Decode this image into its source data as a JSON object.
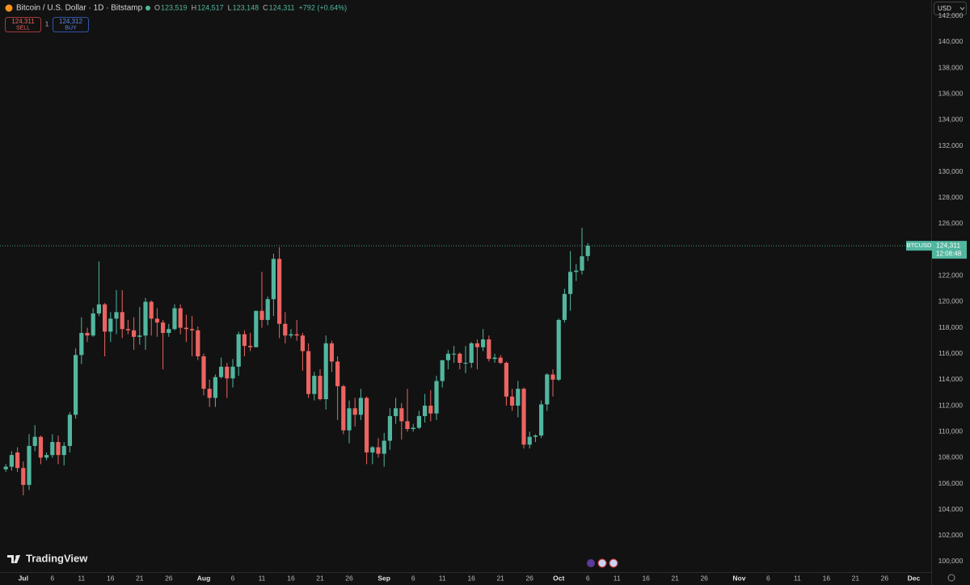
{
  "header": {
    "symbol": "Bitcoin / U.S. Dollar · 1D · Bitstamp",
    "ohlc": [
      {
        "key": "O",
        "value": "123,519"
      },
      {
        "key": "H",
        "value": "124,517"
      },
      {
        "key": "L",
        "value": "123,148"
      },
      {
        "key": "C",
        "value": "124,311"
      }
    ],
    "change": "+792 (+0.64%)",
    "sell_price": "124,311",
    "sell_label": "SELL",
    "quantity": "1",
    "buy_price": "124,312",
    "buy_label": "BUY",
    "currency": "USD"
  },
  "price_tag": {
    "symbol": "BTCUSD",
    "price": "124,311",
    "countdown": "12:08:48"
  },
  "logo": "TradingView",
  "chart_data": {
    "type": "candlestick",
    "up_color": "#52b69f",
    "down_color": "#eb6461",
    "grid": false,
    "x": [
      "Jun 28",
      "Jun 29",
      "Jun 30",
      "Jul 1",
      "Jul 2",
      "Jul 3",
      "Jul 4",
      "Jul 5",
      "Jul 6",
      "Jul 7",
      "Jul 8",
      "Jul 9",
      "Jul 10",
      "Jul 11",
      "Jul 12",
      "Jul 13",
      "Jul 14",
      "Jul 15",
      "Jul 16",
      "Jul 17",
      "Jul 18",
      "Jul 19",
      "Jul 20",
      "Jul 21",
      "Jul 22",
      "Jul 23",
      "Jul 24",
      "Jul 25",
      "Jul 26",
      "Jul 27",
      "Jul 28",
      "Jul 29",
      "Jul 30",
      "Jul 31",
      "Aug 1",
      "Aug 2",
      "Aug 3",
      "Aug 4",
      "Aug 5",
      "Aug 6",
      "Aug 7",
      "Aug 8",
      "Aug 9",
      "Aug 10",
      "Aug 11",
      "Aug 12",
      "Aug 13",
      "Aug 14",
      "Aug 15",
      "Aug 16",
      "Aug 17",
      "Aug 18",
      "Aug 19",
      "Aug 20",
      "Aug 21",
      "Aug 22",
      "Aug 23",
      "Aug 24",
      "Aug 25",
      "Aug 26",
      "Aug 27",
      "Aug 28",
      "Aug 29",
      "Aug 30",
      "Aug 31",
      "Sep 1",
      "Sep 2",
      "Sep 3",
      "Sep 4",
      "Sep 5",
      "Sep 6",
      "Sep 7",
      "Sep 8",
      "Sep 9",
      "Sep 10",
      "Sep 11",
      "Sep 12",
      "Sep 13",
      "Sep 14",
      "Sep 15",
      "Sep 16",
      "Sep 17",
      "Sep 18",
      "Sep 19",
      "Sep 20",
      "Sep 21",
      "Sep 22",
      "Sep 23",
      "Sep 24",
      "Sep 25",
      "Sep 26",
      "Sep 27",
      "Sep 28",
      "Sep 29",
      "Sep 30",
      "Oct 1",
      "Oct 2",
      "Oct 3",
      "Oct 4",
      "Oct 5",
      "Oct 6"
    ],
    "open": [
      107100,
      107300,
      108400,
      107200,
      105900,
      108900,
      109600,
      108000,
      108200,
      109200,
      108200,
      108900,
      111300,
      115900,
      117600,
      117400,
      119100,
      119800,
      117700,
      118700,
      119200,
      117900,
      117800,
      117300,
      117400,
      120000,
      118700,
      118400,
      117600,
      117900,
      119500,
      118000,
      117900,
      117800,
      115800,
      113300,
      112600,
      114200,
      115000,
      114100,
      115000,
      117500,
      116600,
      116500,
      119300,
      118600,
      120200,
      123300,
      118300,
      117400,
      117500,
      117400,
      116200,
      112900,
      114300,
      112500,
      116800,
      115400,
      113500,
      110100,
      111800,
      111300,
      112600,
      108400,
      108800,
      108300,
      109300,
      111200,
      111800,
      110800,
      110200,
      110300,
      111200,
      112000,
      111400,
      113900,
      115500,
      116000,
      116000,
      115300,
      115300,
      116800,
      116500,
      117100,
      115600,
      115700,
      115300,
      112700,
      112000,
      113300,
      109000,
      109600,
      109700,
      112100,
      114400,
      114000,
      118600,
      120600,
      122300,
      122400,
      123519
    ],
    "high": [
      107500,
      108500,
      108800,
      107700,
      109800,
      110500,
      109700,
      108400,
      109800,
      109700,
      109200,
      111500,
      116400,
      118800,
      118000,
      119500,
      123100,
      119900,
      119200,
      120900,
      120900,
      118600,
      118800,
      119600,
      120300,
      120100,
      119500,
      118600,
      118300,
      119800,
      119800,
      119000,
      118900,
      118100,
      116000,
      114000,
      114400,
      115700,
      115300,
      115600,
      117700,
      117800,
      117600,
      119300,
      122300,
      120400,
      123700,
      124200,
      119200,
      117900,
      118600,
      117600,
      116800,
      114600,
      114800,
      117400,
      117000,
      115800,
      113600,
      112400,
      112600,
      113300,
      112700,
      108900,
      109500,
      109900,
      111800,
      112600,
      112200,
      113300,
      110600,
      111600,
      112900,
      113200,
      114300,
      115500,
      116300,
      116600,
      116100,
      116600,
      116900,
      117100,
      117900,
      117400,
      116000,
      115900,
      115400,
      113300,
      113900,
      113400,
      110000,
      109800,
      112400,
      114500,
      114800,
      118700,
      121000,
      123900,
      122900,
      125700,
      124517
    ],
    "low": [
      106900,
      107000,
      106900,
      105100,
      105500,
      108500,
      107500,
      107800,
      108000,
      107500,
      107400,
      108400,
      111000,
      115200,
      116900,
      117300,
      118900,
      115800,
      116900,
      117500,
      117200,
      117500,
      116300,
      116700,
      116300,
      117400,
      117300,
      114800,
      117300,
      117800,
      117500,
      116900,
      115800,
      115500,
      112800,
      111900,
      111900,
      114100,
      112600,
      113400,
      114300,
      115800,
      116200,
      116500,
      118000,
      118200,
      118900,
      117200,
      116800,
      117200,
      117000,
      114700,
      112600,
      112400,
      112400,
      111700,
      114600,
      110900,
      109800,
      109100,
      110400,
      110900,
      107500,
      107500,
      108000,
      107300,
      108600,
      110600,
      109400,
      110000,
      110000,
      110200,
      110700,
      110800,
      110900,
      113400,
      114800,
      115300,
      114800,
      114500,
      114900,
      114800,
      116200,
      115400,
      115300,
      115200,
      112000,
      111600,
      111100,
      108700,
      108700,
      109200,
      109500,
      111600,
      112700,
      113900,
      118400,
      119300,
      121600,
      122100,
      123148
    ],
    "close": [
      107300,
      108200,
      107200,
      105900,
      108900,
      109600,
      108000,
      108200,
      109200,
      108200,
      108900,
      111300,
      115900,
      117600,
      117400,
      119100,
      119800,
      117700,
      118700,
      119200,
      117900,
      117800,
      117300,
      117400,
      120000,
      118700,
      118400,
      117600,
      117900,
      119500,
      118000,
      117900,
      117800,
      115800,
      113300,
      112600,
      114200,
      115000,
      114100,
      115000,
      117500,
      116600,
      116500,
      119300,
      118600,
      120200,
      123300,
      118300,
      117400,
      117500,
      117400,
      116200,
      112900,
      114300,
      112500,
      116800,
      115400,
      113500,
      110100,
      111800,
      111300,
      112600,
      108400,
      108800,
      108300,
      109300,
      111200,
      111800,
      110800,
      110200,
      110300,
      111200,
      112000,
      111400,
      113900,
      115500,
      116000,
      116000,
      115300,
      115300,
      116800,
      116500,
      117100,
      115600,
      115700,
      115300,
      112700,
      112000,
      113300,
      109000,
      109600,
      109700,
      112100,
      114400,
      114000,
      118600,
      120600,
      122300,
      122400,
      123500,
      124311
    ],
    "xlim": [
      "Jun 27",
      "Dec 4"
    ],
    "xticks": [
      {
        "value": "Jul 1",
        "label": "Jul"
      },
      {
        "value": "Jul 6",
        "label": "6"
      },
      {
        "value": "Jul 11",
        "label": "11"
      },
      {
        "value": "Jul 16",
        "label": "16"
      },
      {
        "value": "Jul 21",
        "label": "21"
      },
      {
        "value": "Jul 26",
        "label": "26"
      },
      {
        "value": "Aug 1",
        "label": "Aug"
      },
      {
        "value": "Aug 6",
        "label": "6"
      },
      {
        "value": "Aug 11",
        "label": "11"
      },
      {
        "value": "Aug 16",
        "label": "16"
      },
      {
        "value": "Aug 21",
        "label": "21"
      },
      {
        "value": "Aug 26",
        "label": "26"
      },
      {
        "value": "Sep 1",
        "label": "Sep"
      },
      {
        "value": "Sep 6",
        "label": "6"
      },
      {
        "value": "Sep 11",
        "label": "11"
      },
      {
        "value": "Sep 16",
        "label": "16"
      },
      {
        "value": "Sep 21",
        "label": "21"
      },
      {
        "value": "Sep 26",
        "label": "26"
      },
      {
        "value": "Oct 1",
        "label": "Oct"
      },
      {
        "value": "Oct 6",
        "label": "6"
      },
      {
        "value": "Oct 11",
        "label": "11"
      },
      {
        "value": "Oct 16",
        "label": "16"
      },
      {
        "value": "Oct 21",
        "label": "21"
      },
      {
        "value": "Oct 26",
        "label": "26"
      },
      {
        "value": "Nov 1",
        "label": "Nov"
      },
      {
        "value": "Nov 6",
        "label": "6"
      },
      {
        "value": "Nov 11",
        "label": "11"
      },
      {
        "value": "Nov 16",
        "label": "16"
      },
      {
        "value": "Nov 21",
        "label": "21"
      },
      {
        "value": "Nov 26",
        "label": "26"
      },
      {
        "value": "Dec 1",
        "label": "Dec"
      }
    ],
    "ylim": [
      99190,
      143230
    ],
    "yticks": [
      {
        "value": 100000,
        "label": "100,000"
      },
      {
        "value": 102000,
        "label": "102,000"
      },
      {
        "value": 104000,
        "label": "104,000"
      },
      {
        "value": 106000,
        "label": "106,000"
      },
      {
        "value": 108000,
        "label": "108,000"
      },
      {
        "value": 110000,
        "label": "110,000"
      },
      {
        "value": 112000,
        "label": "112,000"
      },
      {
        "value": 114000,
        "label": "114,000"
      },
      {
        "value": 116000,
        "label": "116,000"
      },
      {
        "value": 118000,
        "label": "118,000"
      },
      {
        "value": 120000,
        "label": "120,000"
      },
      {
        "value": 122000,
        "label": "122,000"
      },
      {
        "value": 124000,
        "label": "124,000"
      },
      {
        "value": 126000,
        "label": "126,000"
      },
      {
        "value": 128000,
        "label": "128,000"
      },
      {
        "value": 130000,
        "label": "130,000"
      },
      {
        "value": 132000,
        "label": "132,000"
      },
      {
        "value": 134000,
        "label": "134,000"
      },
      {
        "value": 136000,
        "label": "136,000"
      },
      {
        "value": 138000,
        "label": "138,000"
      },
      {
        "value": 140000,
        "label": "140,000"
      },
      {
        "value": 142000,
        "label": "142,000"
      }
    ]
  }
}
